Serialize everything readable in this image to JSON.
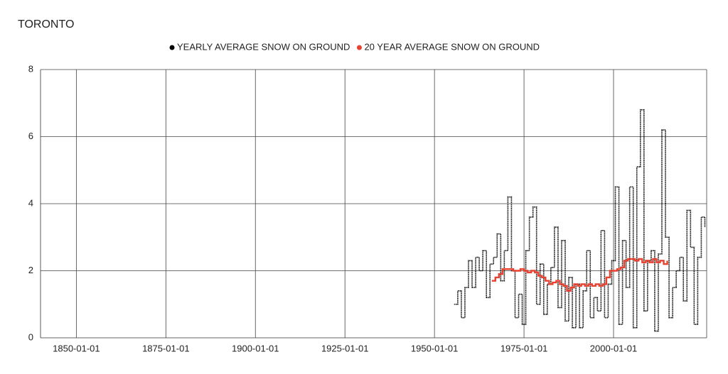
{
  "chart_data": {
    "type": "line",
    "title": "TORONTO",
    "xlim": [
      "1840-01-01",
      "2026-01-01"
    ],
    "xticks": [
      "1850-01-01",
      "1875-01-01",
      "1900-01-01",
      "1925-01-01",
      "1950-01-01",
      "1975-01-01",
      "2000-01-01"
    ],
    "ylim": [
      0,
      8
    ],
    "yticks": [
      0,
      2,
      4,
      6,
      8
    ],
    "grid": true,
    "legend": "top",
    "series": [
      {
        "name": "YEARLY AVERAGE SNOW ON GROUND",
        "color": "#000000",
        "x": [
          "1955-07-01",
          "1956-07-01",
          "1957-07-01",
          "1958-07-01",
          "1959-07-01",
          "1960-07-01",
          "1961-07-01",
          "1962-07-01",
          "1963-07-01",
          "1964-07-01",
          "1965-07-01",
          "1966-07-01",
          "1967-07-01",
          "1968-07-01",
          "1969-07-01",
          "1970-07-01",
          "1971-07-01",
          "1972-07-01",
          "1973-07-01",
          "1974-07-01",
          "1975-07-01",
          "1976-07-01",
          "1977-07-01",
          "1978-07-01",
          "1979-07-01",
          "1980-07-01",
          "1981-07-01",
          "1982-07-01",
          "1983-07-01",
          "1984-07-01",
          "1985-07-01",
          "1986-07-01",
          "1987-07-01",
          "1988-07-01",
          "1989-07-01",
          "1990-07-01",
          "1991-07-01",
          "1992-07-01",
          "1993-07-01",
          "1994-07-01",
          "1995-07-01",
          "1996-07-01",
          "1997-07-01",
          "1998-07-01",
          "1999-07-01",
          "2000-07-01",
          "2001-07-01",
          "2002-07-01",
          "2003-07-01",
          "2004-07-01",
          "2005-07-01",
          "2006-07-01",
          "2007-07-01",
          "2008-07-01",
          "2009-07-01",
          "2010-07-01",
          "2011-07-01",
          "2012-07-01",
          "2013-07-01",
          "2014-07-01",
          "2015-07-01",
          "2016-07-01",
          "2017-07-01",
          "2018-07-01",
          "2019-07-01",
          "2020-07-01",
          "2021-07-01",
          "2022-07-01",
          "2023-07-01",
          "2024-07-01",
          "2025-07-01"
        ],
        "values": [
          1.0,
          1.4,
          0.6,
          1.5,
          2.3,
          1.5,
          2.4,
          2.0,
          2.6,
          1.2,
          2.2,
          2.4,
          3.1,
          1.7,
          2.6,
          4.2,
          2.0,
          0.6,
          1.3,
          0.4,
          2.6,
          3.6,
          3.9,
          1.0,
          2.2,
          0.7,
          1.6,
          2.1,
          3.3,
          0.9,
          2.9,
          0.5,
          1.8,
          0.3,
          1.6,
          0.3,
          1.4,
          2.6,
          0.6,
          1.2,
          0.8,
          3.2,
          0.6,
          1.6,
          2.3,
          4.5,
          0.4,
          2.9,
          1.5,
          4.5,
          0.3,
          5.1,
          6.8,
          0.8,
          2.3,
          2.6,
          0.2,
          2.5,
          6.2,
          3.0,
          0.6,
          1.5,
          2.0,
          2.4,
          1.1,
          3.8,
          2.7,
          0.4,
          2.4,
          3.6,
          3.3
        ]
      },
      {
        "name": "20 YEAR AVERAGE SNOW ON GROUND",
        "color": "#e8412f",
        "x": [
          "1966-01-01",
          "1967-01-01",
          "1968-01-01",
          "1969-01-01",
          "1970-01-01",
          "1971-01-01",
          "1972-01-01",
          "1973-01-01",
          "1974-01-01",
          "1975-01-01",
          "1976-01-01",
          "1977-01-01",
          "1978-01-01",
          "1979-01-01",
          "1980-01-01",
          "1981-01-01",
          "1982-01-01",
          "1983-01-01",
          "1984-01-01",
          "1985-01-01",
          "1986-01-01",
          "1987-01-01",
          "1988-01-01",
          "1989-01-01",
          "1990-01-01",
          "1991-01-01",
          "1992-01-01",
          "1993-01-01",
          "1994-01-01",
          "1995-01-01",
          "1996-01-01",
          "1997-01-01",
          "1998-01-01",
          "1999-01-01",
          "2000-01-01",
          "2001-01-01",
          "2002-01-01",
          "2003-01-01",
          "2004-01-01",
          "2005-01-01",
          "2006-01-01",
          "2007-01-01",
          "2008-01-01",
          "2009-01-01",
          "2010-01-01",
          "2011-01-01",
          "2012-01-01",
          "2013-01-01",
          "2014-01-01",
          "2015-01-01"
        ],
        "values": [
          1.7,
          1.8,
          1.9,
          2.05,
          2.05,
          2.05,
          2.0,
          2.0,
          2.05,
          2.0,
          1.95,
          2.0,
          1.95,
          1.85,
          1.8,
          1.7,
          1.6,
          1.65,
          1.7,
          1.6,
          1.55,
          1.4,
          1.5,
          1.6,
          1.55,
          1.6,
          1.55,
          1.6,
          1.55,
          1.6,
          1.55,
          1.6,
          1.8,
          2.0,
          2.0,
          2.05,
          2.1,
          2.3,
          2.35,
          2.35,
          2.3,
          2.35,
          2.25,
          2.3,
          2.25,
          2.35,
          2.25,
          2.3,
          2.2,
          2.3
        ]
      }
    ]
  }
}
